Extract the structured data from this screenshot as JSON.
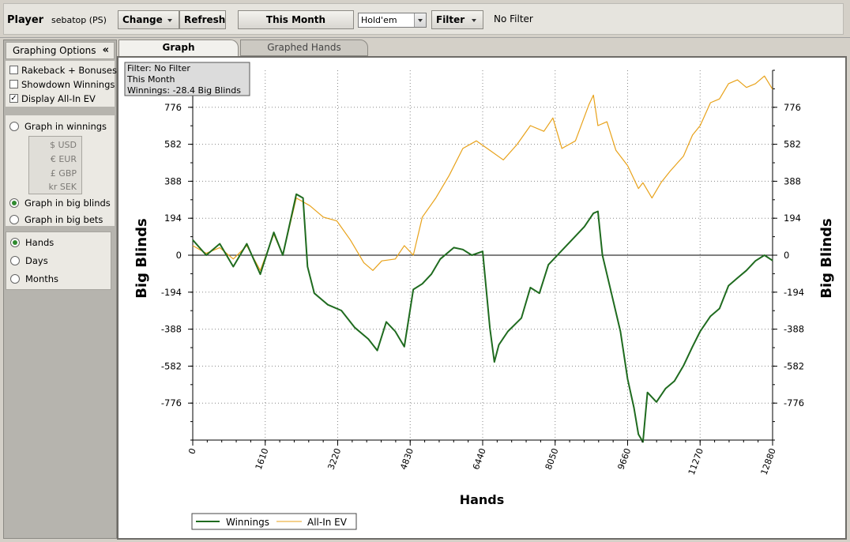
{
  "header": {
    "player_label": "Player",
    "player_name": "sebatop (PS)",
    "change_label": "Change",
    "refresh_label": "Refresh",
    "period_label": "This Month",
    "game_select": "Hold'em",
    "filter_label": "Filter",
    "filter_status": "No Filter"
  },
  "options": {
    "title": "Graphing Options",
    "collapse": "«",
    "checkboxes": [
      {
        "label": "Rakeback + Bonuses",
        "checked": false
      },
      {
        "label": "Showdown Winnings",
        "checked": false
      },
      {
        "label": "Display All-In EV",
        "checked": true
      }
    ],
    "graph_in_winnings": "Graph in winnings",
    "currencies": [
      "$ USD",
      "€ EUR",
      "£ GBP",
      "kr SEK"
    ],
    "graph_in_big_blinds": "Graph in big blinds",
    "graph_in_big_bets": "Graph in big bets",
    "unit_selected": "big blinds",
    "x_axis_options": [
      "Hands",
      "Days",
      "Months"
    ],
    "x_axis_selected": "Hands"
  },
  "tabs": [
    {
      "label": "Graph",
      "active": true
    },
    {
      "label": "Graphed Hands",
      "active": false
    }
  ],
  "filter_box": {
    "line1": "Filter: No Filter",
    "line2": "This Month",
    "line3": "Winnings: -28.4 Big Blinds"
  },
  "chart_data": {
    "type": "line",
    "xlabel": "Hands",
    "ylabel": "Big Blinds",
    "ylabel_right": "Big Blinds",
    "xlim": [
      0,
      12880
    ],
    "ylim": [
      -970,
      970
    ],
    "x_ticks": [
      0,
      1610,
      3220,
      4830,
      6440,
      8050,
      9660,
      11270,
      12880
    ],
    "y_ticks": [
      776,
      582,
      388,
      194,
      0,
      -194,
      -388,
      -582,
      -776
    ],
    "grid": true,
    "legend_position": "bottom-left",
    "series": [
      {
        "name": "Winnings",
        "color": "#1f6b1f",
        "x": [
          0,
          300,
          600,
          900,
          1200,
          1500,
          1800,
          2000,
          2300,
          2450,
          2550,
          2700,
          3000,
          3300,
          3600,
          3900,
          4100,
          4300,
          4500,
          4700,
          4900,
          5100,
          5300,
          5500,
          5800,
          6000,
          6200,
          6440,
          6600,
          6700,
          6800,
          7000,
          7300,
          7500,
          7700,
          7900,
          8100,
          8300,
          8500,
          8700,
          8900,
          9000,
          9100,
          9300,
          9500,
          9660,
          9800,
          9900,
          10000,
          10100,
          10300,
          10500,
          10700,
          10900,
          11100,
          11270,
          11500,
          11700,
          11900,
          12100,
          12300,
          12500,
          12700,
          12880
        ],
        "values": [
          80,
          0,
          60,
          -60,
          60,
          -100,
          120,
          0,
          320,
          300,
          -60,
          -200,
          -260,
          -290,
          -380,
          -440,
          -500,
          -350,
          -400,
          -480,
          -180,
          -150,
          -100,
          -20,
          40,
          30,
          0,
          20,
          -380,
          -560,
          -470,
          -400,
          -330,
          -170,
          -200,
          -50,
          0,
          50,
          100,
          150,
          220,
          230,
          0,
          -200,
          -400,
          -650,
          -800,
          -940,
          -980,
          -720,
          -770,
          -700,
          -660,
          -580,
          -480,
          -400,
          -320,
          -280,
          -160,
          -120,
          -80,
          -30,
          0,
          -28
        ]
      },
      {
        "name": "All-In EV",
        "color": "#e8a21a",
        "x": [
          0,
          300,
          600,
          900,
          1200,
          1500,
          1800,
          2000,
          2300,
          2600,
          2900,
          3200,
          3500,
          3800,
          4000,
          4200,
          4500,
          4700,
          4900,
          5100,
          5400,
          5700,
          6000,
          6300,
          6600,
          6900,
          7200,
          7500,
          7800,
          8000,
          8200,
          8500,
          8800,
          8900,
          9000,
          9200,
          9400,
          9660,
          9900,
          10000,
          10200,
          10400,
          10600,
          10900,
          11100,
          11270,
          11500,
          11700,
          11900,
          12100,
          12300,
          12500,
          12700,
          12880
        ],
        "values": [
          50,
          10,
          40,
          -20,
          50,
          -80,
          110,
          0,
          300,
          260,
          200,
          180,
          80,
          -40,
          -80,
          -30,
          -20,
          50,
          0,
          200,
          300,
          420,
          560,
          600,
          550,
          500,
          580,
          680,
          650,
          720,
          560,
          600,
          790,
          840,
          680,
          700,
          550,
          470,
          350,
          380,
          300,
          380,
          440,
          520,
          630,
          680,
          800,
          820,
          900,
          920,
          880,
          900,
          940,
          870
        ]
      }
    ]
  }
}
